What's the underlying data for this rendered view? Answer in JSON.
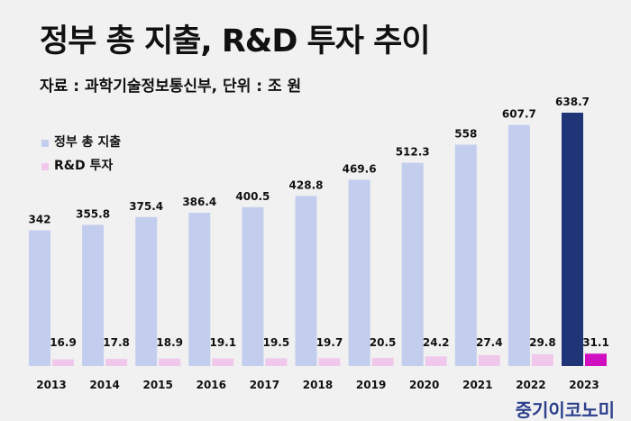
{
  "chart_data": {
    "type": "bar",
    "title": "정부 총 지출, R&D 투자 추이",
    "subtitle": "자료 : 과학기술정보통신부, 단위 : 조 원",
    "categories": [
      "2013",
      "2014",
      "2015",
      "2016",
      "2017",
      "2018",
      "2019",
      "2020",
      "2021",
      "2022",
      "2023"
    ],
    "series": [
      {
        "name": "정부 총 지출",
        "values": [
          342,
          355.8,
          375.4,
          386.4,
          400.5,
          428.8,
          469.6,
          512.3,
          558,
          607.7,
          638.7
        ],
        "color": "#c3cdee",
        "highlight_color": "#1f3577"
      },
      {
        "name": "R&D 투자",
        "values": [
          16.9,
          17.8,
          18.9,
          19.1,
          19.5,
          19.7,
          20.5,
          24.2,
          27.4,
          29.8,
          31.1
        ],
        "color": "#f0c8eb",
        "highlight_color": "#d010c0"
      }
    ],
    "highlight_category": "2023",
    "xlabel": "",
    "ylabel": "",
    "ylim": [
      0,
      650
    ],
    "grid": false,
    "legend_position": "top-left"
  },
  "brand": "중기이코노미"
}
